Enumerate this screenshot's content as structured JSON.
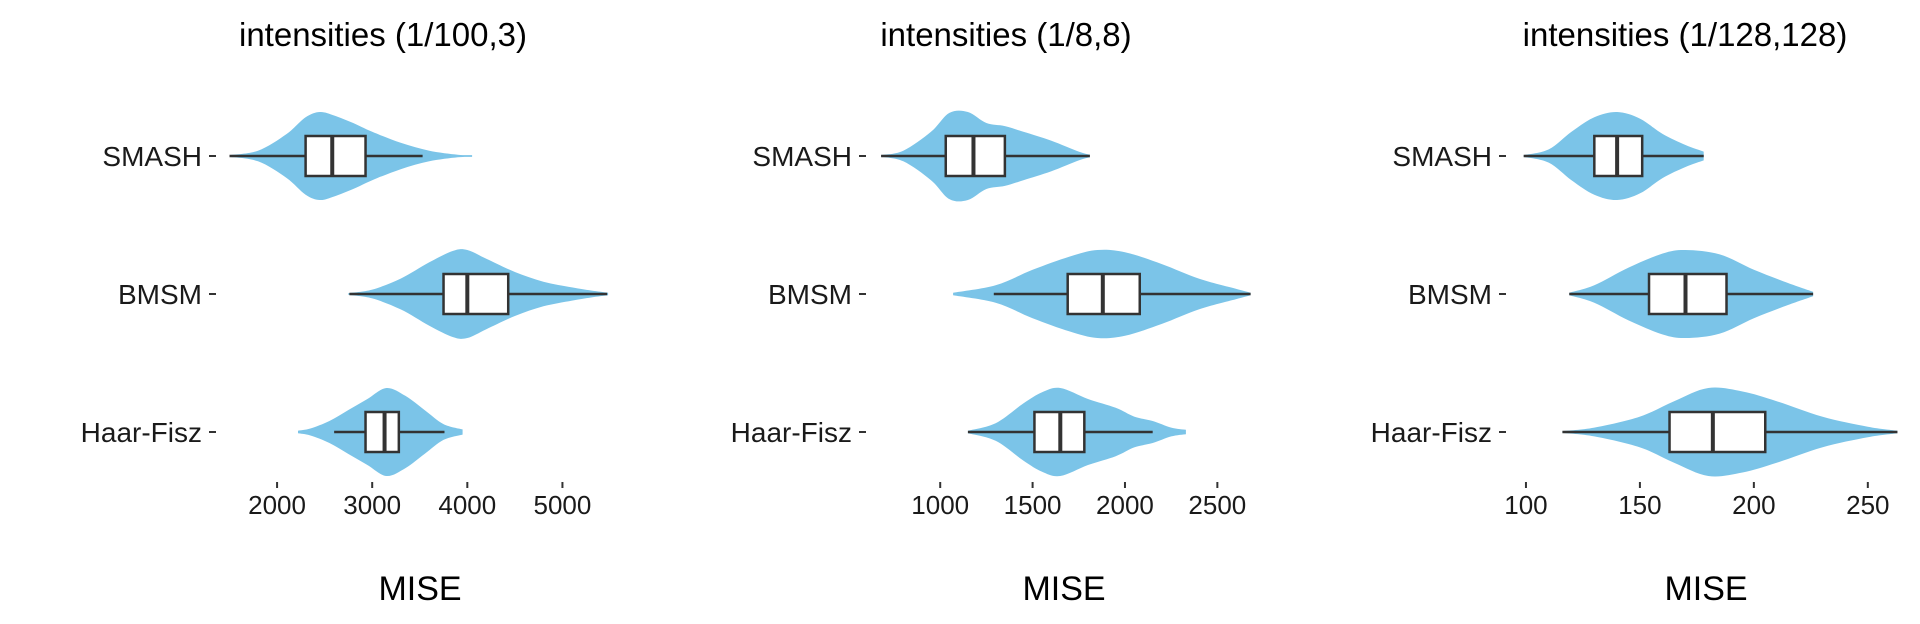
{
  "style": {
    "violin_color": "#7bc4e8",
    "box_fill": "#ffffff",
    "line_color": "#333333"
  },
  "chart_data": [
    {
      "type": "violin",
      "title": "intensities (1/100,3)",
      "xlabel": "MISE",
      "categories": [
        "SMASH",
        "BMSM",
        "Haar-Fisz"
      ],
      "xlim": [
        1400,
        5500
      ],
      "xticks": [
        2000,
        3000,
        4000,
        5000
      ],
      "xtick_labels": [
        "2000",
        "3000",
        "4000",
        "5000"
      ],
      "groups": [
        {
          "name": "SMASH",
          "min": 1500,
          "q1": 2300,
          "median": 2580,
          "q3": 2930,
          "max": 3530,
          "density": [
            [
              1500,
              0.02
            ],
            [
              1800,
              0.12
            ],
            [
              2100,
              0.5
            ],
            [
              2300,
              0.88
            ],
            [
              2450,
              1.0
            ],
            [
              2600,
              0.92
            ],
            [
              2800,
              0.75
            ],
            [
              3000,
              0.55
            ],
            [
              3300,
              0.3
            ],
            [
              3600,
              0.12
            ],
            [
              3900,
              0.03
            ],
            [
              4050,
              0.02
            ]
          ]
        },
        {
          "name": "BMSM",
          "min": 2760,
          "q1": 3750,
          "median": 4000,
          "q3": 4430,
          "max": 5470,
          "density": [
            [
              2750,
              0.02
            ],
            [
              3000,
              0.1
            ],
            [
              3300,
              0.35
            ],
            [
              3600,
              0.72
            ],
            [
              3850,
              0.98
            ],
            [
              4000,
              1.0
            ],
            [
              4200,
              0.8
            ],
            [
              4500,
              0.5
            ],
            [
              4800,
              0.28
            ],
            [
              5100,
              0.15
            ],
            [
              5300,
              0.08
            ],
            [
              5480,
              0.03
            ]
          ]
        },
        {
          "name": "Haar-Fisz",
          "min": 2600,
          "q1": 2930,
          "median": 3130,
          "q3": 3280,
          "max": 3760,
          "density": [
            [
              2220,
              0.03
            ],
            [
              2350,
              0.08
            ],
            [
              2550,
              0.25
            ],
            [
              2750,
              0.5
            ],
            [
              2950,
              0.75
            ],
            [
              3150,
              1.0
            ],
            [
              3350,
              0.82
            ],
            [
              3550,
              0.5
            ],
            [
              3750,
              0.18
            ],
            [
              3950,
              0.06
            ]
          ]
        }
      ]
    },
    {
      "type": "violin",
      "title": "intensities (1/8,8)",
      "xlabel": "MISE",
      "categories": [
        "SMASH",
        "BMSM",
        "Haar-Fisz"
      ],
      "xlim": [
        620,
        2720
      ],
      "xticks": [
        1000,
        1500,
        2000,
        2500
      ],
      "xtick_labels": [
        "1000",
        "1500",
        "2000",
        "2500"
      ],
      "groups": [
        {
          "name": "SMASH",
          "min": 680,
          "q1": 1030,
          "median": 1180,
          "q3": 1350,
          "max": 1810,
          "density": [
            [
              680,
              0.02
            ],
            [
              800,
              0.12
            ],
            [
              950,
              0.55
            ],
            [
              1050,
              0.98
            ],
            [
              1150,
              1.0
            ],
            [
              1250,
              0.75
            ],
            [
              1350,
              0.68
            ],
            [
              1450,
              0.55
            ],
            [
              1600,
              0.35
            ],
            [
              1750,
              0.1
            ],
            [
              1810,
              0.03
            ]
          ]
        },
        {
          "name": "BMSM",
          "min": 1290,
          "q1": 1690,
          "median": 1880,
          "q3": 2080,
          "max": 2680,
          "density": [
            [
              1070,
              0.03
            ],
            [
              1300,
              0.2
            ],
            [
              1500,
              0.55
            ],
            [
              1700,
              0.85
            ],
            [
              1850,
              1.0
            ],
            [
              2000,
              0.95
            ],
            [
              2200,
              0.68
            ],
            [
              2400,
              0.35
            ],
            [
              2600,
              0.12
            ],
            [
              2680,
              0.03
            ]
          ]
        },
        {
          "name": "Haar-Fisz",
          "min": 1150,
          "q1": 1510,
          "median": 1650,
          "q3": 1780,
          "max": 2150,
          "density": [
            [
              1150,
              0.03
            ],
            [
              1300,
              0.2
            ],
            [
              1450,
              0.65
            ],
            [
              1550,
              0.9
            ],
            [
              1650,
              1.0
            ],
            [
              1800,
              0.75
            ],
            [
              1950,
              0.55
            ],
            [
              2050,
              0.35
            ],
            [
              2150,
              0.25
            ],
            [
              2250,
              0.1
            ],
            [
              2330,
              0.05
            ]
          ]
        }
      ]
    },
    {
      "type": "violin",
      "title": "intensities (1/128,128)",
      "xlabel": "MISE",
      "categories": [
        "SMASH",
        "BMSM",
        "Haar-Fisz"
      ],
      "xlim": [
        93,
        265
      ],
      "xticks": [
        100,
        150,
        200,
        250
      ],
      "xtick_labels": [
        "100",
        "150",
        "200",
        "250"
      ],
      "groups": [
        {
          "name": "SMASH",
          "min": 99,
          "q1": 130,
          "median": 140,
          "q3": 151,
          "max": 178,
          "density": [
            [
              99,
              0.02
            ],
            [
              110,
              0.15
            ],
            [
              120,
              0.55
            ],
            [
              130,
              0.88
            ],
            [
              140,
              1.0
            ],
            [
              150,
              0.85
            ],
            [
              160,
              0.5
            ],
            [
              170,
              0.25
            ],
            [
              178,
              0.1
            ]
          ]
        },
        {
          "name": "BMSM",
          "min": 119,
          "q1": 154,
          "median": 170,
          "q3": 188,
          "max": 226,
          "density": [
            [
              119,
              0.03
            ],
            [
              130,
              0.2
            ],
            [
              145,
              0.6
            ],
            [
              160,
              0.92
            ],
            [
              170,
              1.0
            ],
            [
              185,
              0.9
            ],
            [
              200,
              0.55
            ],
            [
              215,
              0.25
            ],
            [
              226,
              0.05
            ]
          ]
        },
        {
          "name": "Haar-Fisz",
          "min": 116,
          "q1": 163,
          "median": 182,
          "q3": 205,
          "max": 263,
          "density": [
            [
              116,
              0.02
            ],
            [
              130,
              0.1
            ],
            [
              150,
              0.35
            ],
            [
              165,
              0.7
            ],
            [
              180,
              1.0
            ],
            [
              195,
              0.92
            ],
            [
              210,
              0.7
            ],
            [
              230,
              0.35
            ],
            [
              250,
              0.12
            ],
            [
              263,
              0.03
            ]
          ]
        }
      ]
    }
  ]
}
